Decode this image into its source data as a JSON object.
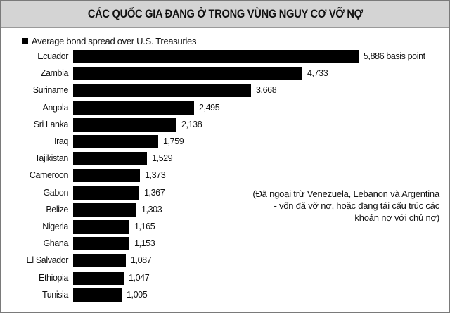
{
  "header": {
    "title": "CÁC QUỐC GIA ĐANG Ở TRONG VÙNG NGUY CƠ VỠ NỢ"
  },
  "legend": {
    "label": "Average bond spread over U.S. Treasuries",
    "color": "#000000"
  },
  "note": {
    "line1": "(Đã ngoại trừ Venezuela, Lebanon và Argentina",
    "line2": "- vốn đã vỡ nợ, hoặc đang tái cấu trúc các",
    "line3": "khoản nợ với chủ nợ)"
  },
  "rows": [
    {
      "country": "Ecuador",
      "value": 5886,
      "label": "5,886 basis point"
    },
    {
      "country": "Zambia",
      "value": 4733,
      "label": "4,733"
    },
    {
      "country": "Suriname",
      "value": 3668,
      "label": "3,668"
    },
    {
      "country": "Angola",
      "value": 2495,
      "label": "2,495"
    },
    {
      "country": "Sri Lanka",
      "value": 2138,
      "label": "2,138"
    },
    {
      "country": "Iraq",
      "value": 1759,
      "label": "1,759"
    },
    {
      "country": "Tajikistan",
      "value": 1529,
      "label": "1,529"
    },
    {
      "country": "Cameroon",
      "value": 1373,
      "label": "1,373"
    },
    {
      "country": "Gabon",
      "value": 1367,
      "label": "1,367"
    },
    {
      "country": "Belize",
      "value": 1303,
      "label": "1,303"
    },
    {
      "country": "Nigeria",
      "value": 1165,
      "label": "1,165"
    },
    {
      "country": "Ghana",
      "value": 1153,
      "label": "1,153"
    },
    {
      "country": "El Salvador",
      "value": 1087,
      "label": "1,087"
    },
    {
      "country": "Ethiopia",
      "value": 1047,
      "label": "1,047"
    },
    {
      "country": "Tunisia",
      "value": 1005,
      "label": "1,005"
    }
  ],
  "chart_data": {
    "type": "bar",
    "orientation": "horizontal",
    "title": "CÁC QUỐC GIA ĐANG Ở TRONG VÙNG NGUY CƠ VỠ NỢ",
    "categories": [
      "Ecuador",
      "Zambia",
      "Suriname",
      "Angola",
      "Sri Lanka",
      "Iraq",
      "Tajikistan",
      "Cameroon",
      "Gabon",
      "Belize",
      "Nigeria",
      "Ghana",
      "El Salvador",
      "Ethiopia",
      "Tunisia"
    ],
    "series": [
      {
        "name": "Average bond spread over U.S. Treasuries",
        "values": [
          5886,
          4733,
          3668,
          2495,
          2138,
          1759,
          1529,
          1373,
          1367,
          1303,
          1165,
          1153,
          1087,
          1047,
          1005
        ]
      }
    ],
    "unit": "basis point",
    "xlabel": "",
    "ylabel": "",
    "grid": false,
    "legend_position": "top-left",
    "annotations": [
      "(Đã ngoại trừ Venezuela, Lebanon và Argentina - vốn đã vỡ nợ, hoặc đang tái cấu trúc các khoản nợ với chủ nợ)"
    ]
  }
}
